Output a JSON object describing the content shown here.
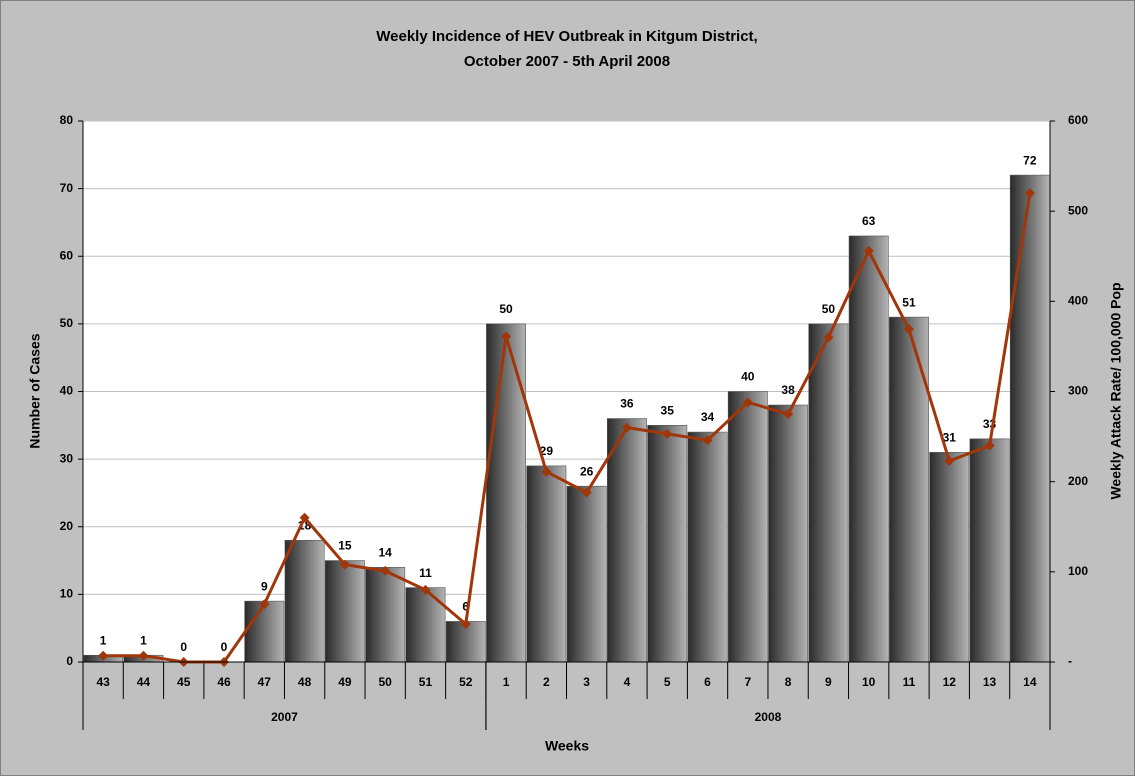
{
  "chart_data": {
    "type": "bar",
    "title": [
      "Weekly Incidence of HEV Outbreak in Kitgum District,",
      "October 2007 - 5th April 2008"
    ],
    "x_label": "Weeks",
    "y_label": "Number of Cases",
    "y2_label": "Weekly Attack Rate/ 100,000 Pop",
    "categories": [
      "43",
      "44",
      "45",
      "46",
      "47",
      "48",
      "49",
      "50",
      "51",
      "52",
      "1",
      "2",
      "3",
      "4",
      "5",
      "6",
      "7",
      "8",
      "9",
      "10",
      "11",
      "12",
      "13",
      "14"
    ],
    "x_groups": [
      {
        "name": "2007",
        "span": 10
      },
      {
        "name": "2008",
        "span": 14
      }
    ],
    "series": [
      {
        "type": "bar",
        "color": "#b4b4b4",
        "values": [
          1,
          1,
          0,
          0,
          9,
          18,
          15,
          14,
          11,
          6,
          50,
          29,
          26,
          36,
          35,
          34,
          40,
          38,
          50,
          63,
          51,
          31,
          33,
          72
        ]
      },
      {
        "type": "line",
        "axis": "y2",
        "color": "#a0360a",
        "values": [
          7,
          7,
          0,
          0,
          64,
          160,
          108,
          101,
          80,
          42,
          361,
          211,
          188,
          260,
          253,
          246,
          288,
          275,
          360,
          456,
          369,
          223,
          240,
          520
        ]
      }
    ],
    "ylim": [
      0,
      80
    ],
    "yticks": [
      0,
      10,
      20,
      30,
      40,
      50,
      60,
      70,
      80
    ],
    "y2lim": [
      0,
      600
    ],
    "y2ticks": [
      {
        "value": 0,
        "label": "-"
      },
      100,
      200,
      300,
      400,
      500,
      600
    ],
    "grid": true
  }
}
